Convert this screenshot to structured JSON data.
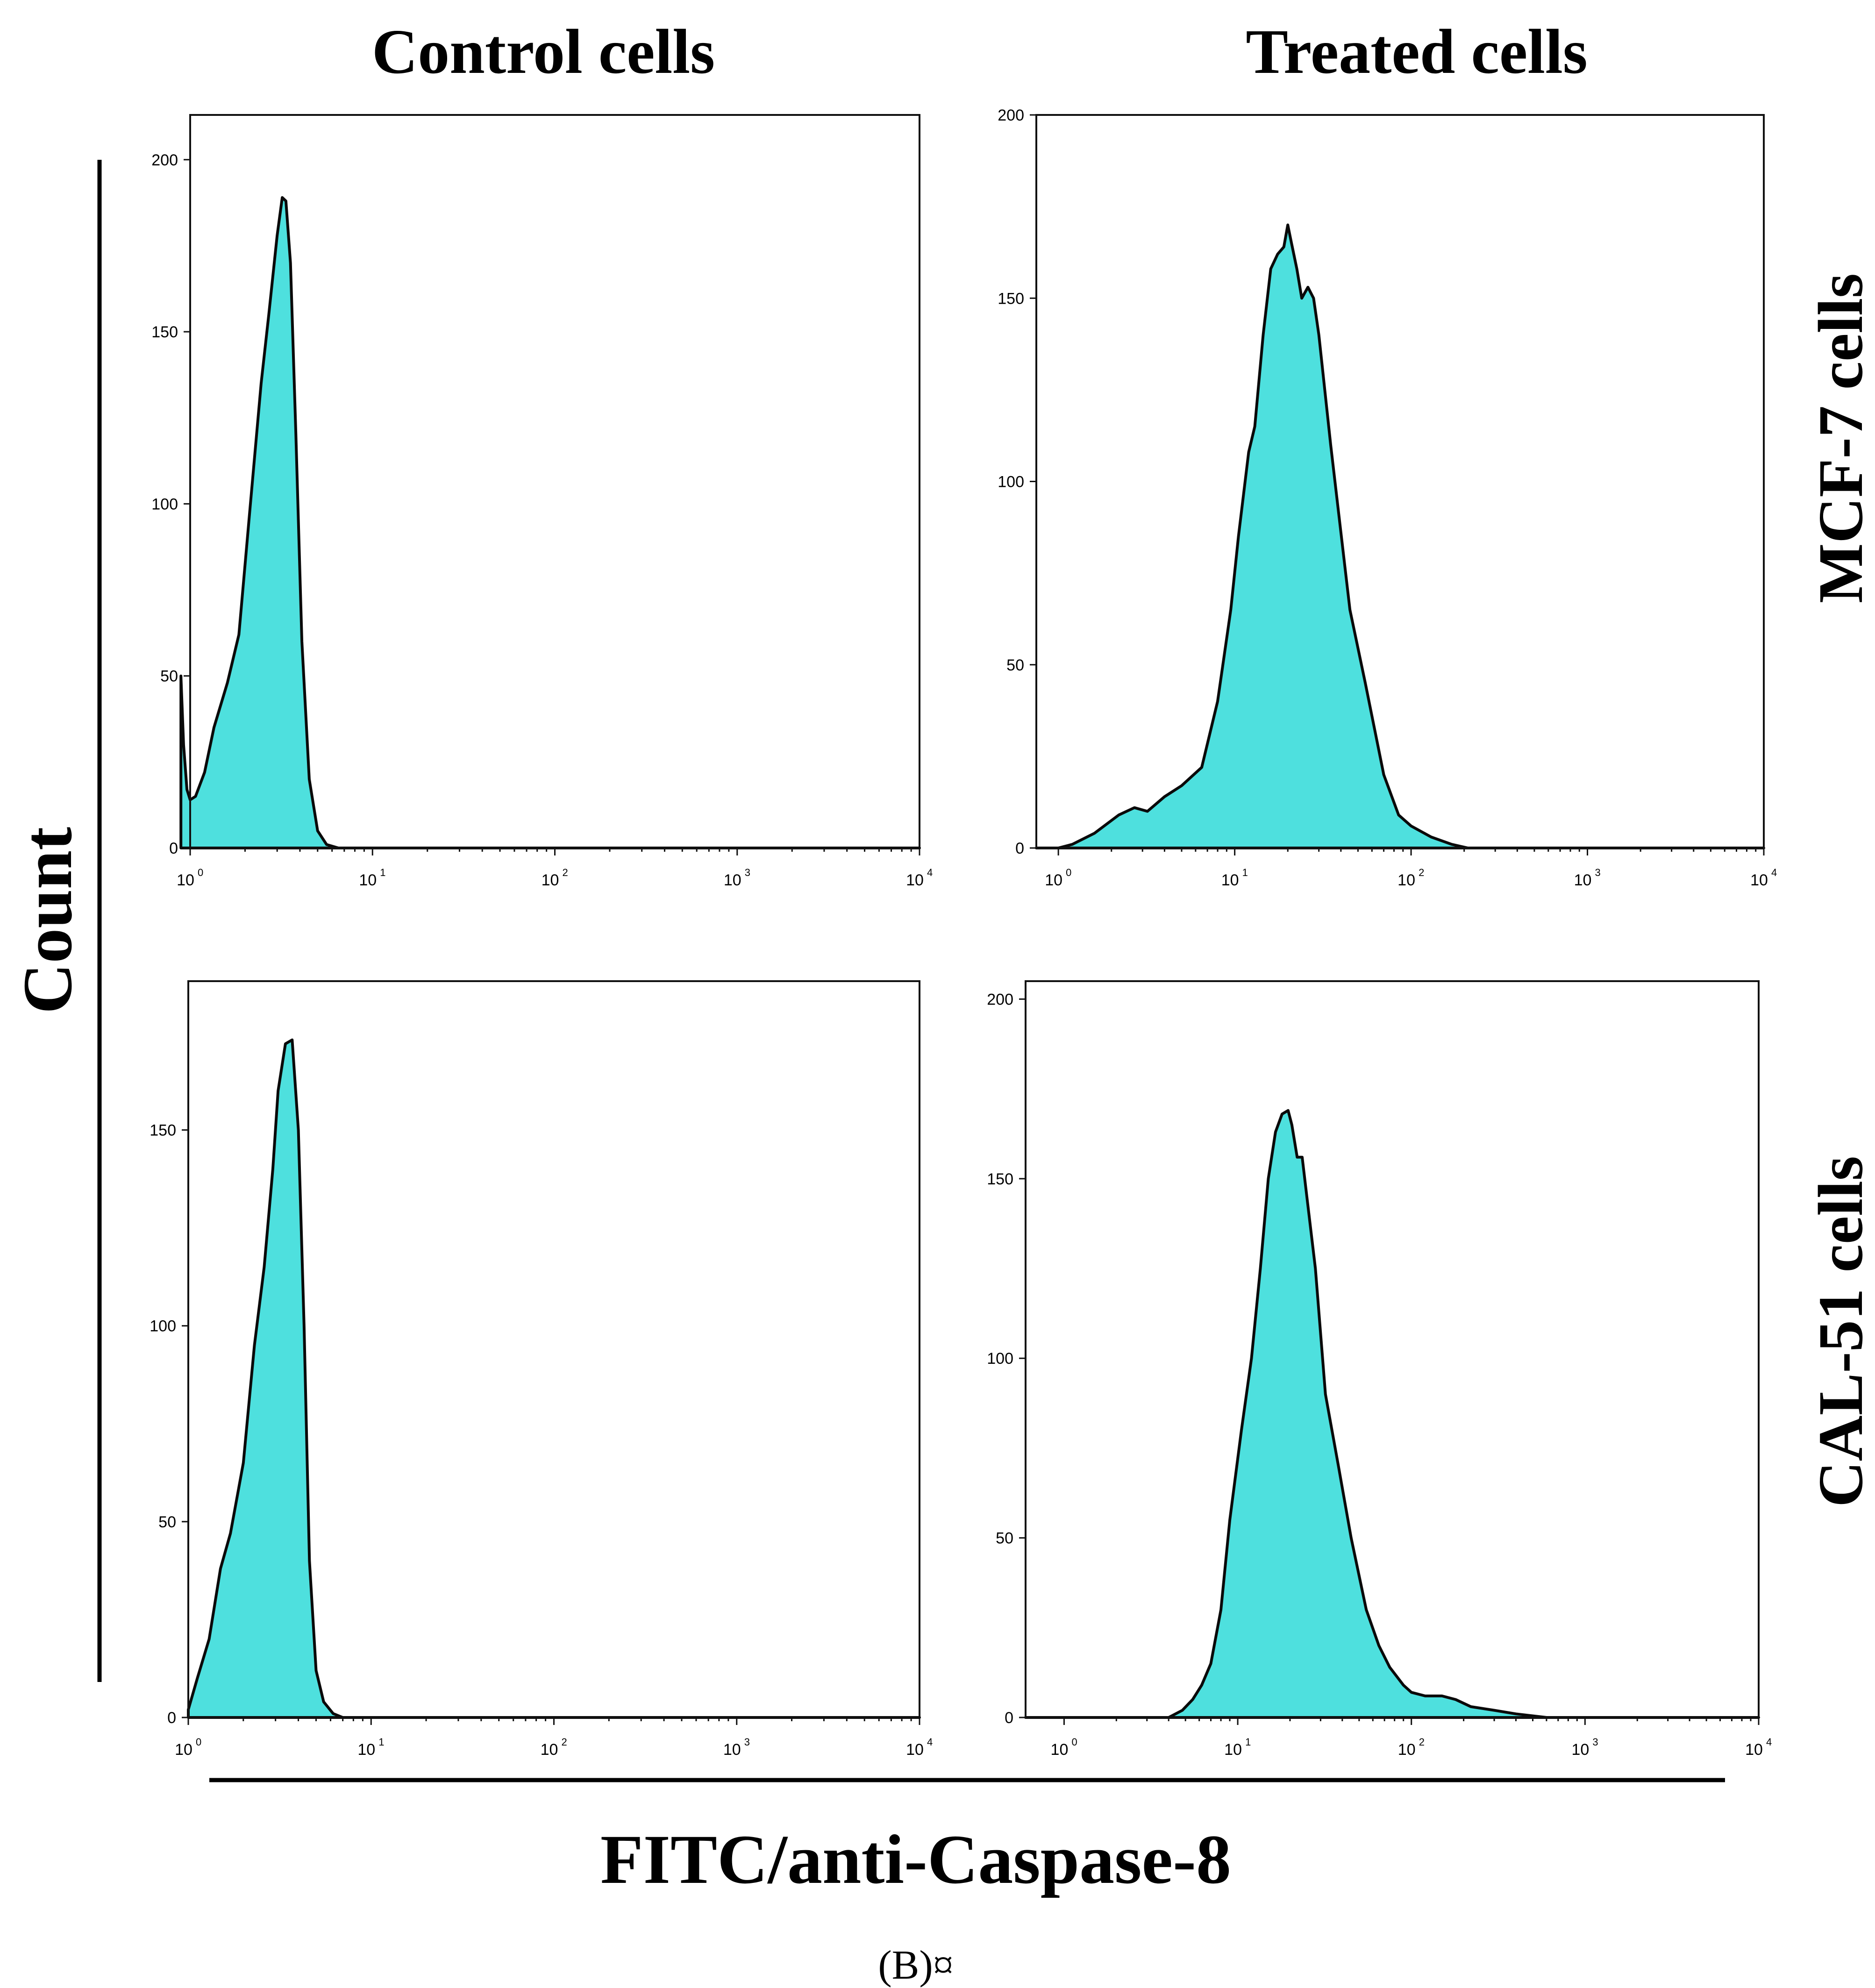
{
  "figure": {
    "columns": [
      "Control cells",
      "Treated cells"
    ],
    "rows": [
      "MCF-7 cells",
      "CAL-51 cells"
    ],
    "ylabel": "Count",
    "xlabel": "FITC/anti-Caspase-8",
    "caption": "(B)¤"
  },
  "chart_data": [
    {
      "type": "area",
      "title": "Control cells / MCF-7 cells",
      "xscale": "log",
      "xlim": [
        1,
        10000
      ],
      "xticks": [
        {
          "base": "10",
          "exp": "0"
        },
        {
          "base": "10",
          "exp": "1"
        },
        {
          "base": "10",
          "exp": "2"
        },
        {
          "base": "10",
          "exp": "3"
        },
        {
          "base": "10",
          "exp": "4"
        }
      ],
      "ylim": [
        0,
        213
      ],
      "yticks": [
        0,
        50,
        100,
        150,
        200
      ],
      "x": [
        0.89,
        0.92,
        0.96,
        1.0,
        1.07,
        1.2,
        1.35,
        1.6,
        1.85,
        2.1,
        2.45,
        2.7,
        3.0,
        3.2,
        3.35,
        3.55,
        3.8,
        4.1,
        4.5,
        5.0,
        5.6,
        6.5,
        8.0,
        20,
        100,
        1000,
        10000
      ],
      "values": [
        50,
        30,
        17,
        14,
        15,
        22,
        35,
        48,
        62,
        95,
        135,
        155,
        178,
        189,
        188,
        170,
        120,
        60,
        20,
        5,
        1,
        0,
        0,
        0,
        0,
        0,
        0
      ]
    },
    {
      "type": "area",
      "title": "Treated cells / MCF-7 cells",
      "xscale": "log",
      "xlim": [
        0.75,
        10000
      ],
      "xticks": [
        {
          "base": "10",
          "exp": "0"
        },
        {
          "base": "10",
          "exp": "1"
        },
        {
          "base": "10",
          "exp": "2"
        },
        {
          "base": "10",
          "exp": "3"
        },
        {
          "base": "10",
          "exp": "4"
        }
      ],
      "ylim": [
        0,
        200
      ],
      "yticks": [
        0,
        50,
        100,
        150,
        200
      ],
      "x": [
        0.75,
        1.0,
        1.2,
        1.6,
        2.2,
        2.7,
        3.2,
        4.0,
        5.0,
        6.5,
        8.0,
        9.5,
        10.5,
        12,
        13,
        14.5,
        16,
        17.5,
        19,
        20,
        21,
        22.5,
        24,
        26,
        28,
        30,
        35,
        45,
        55,
        70,
        85,
        100,
        130,
        170,
        210,
        300,
        1000,
        10000
      ],
      "values": [
        0,
        0,
        1,
        4,
        9,
        11,
        10,
        14,
        17,
        22,
        40,
        65,
        85,
        108,
        115,
        140,
        158,
        162,
        164,
        170,
        165,
        158,
        150,
        153,
        150,
        140,
        110,
        65,
        45,
        20,
        9,
        6,
        3,
        1,
        0,
        0,
        0,
        0
      ]
    },
    {
      "type": "area",
      "title": "Control cells / CAL-51 cells",
      "xscale": "log",
      "xlim": [
        1,
        10000
      ],
      "xticks": [
        {
          "base": "10",
          "exp": "0"
        },
        {
          "base": "10",
          "exp": "1"
        },
        {
          "base": "10",
          "exp": "2"
        },
        {
          "base": "10",
          "exp": "3"
        },
        {
          "base": "10",
          "exp": "4"
        }
      ],
      "ylim": [
        0,
        188
      ],
      "yticks": [
        0,
        50,
        100,
        150
      ],
      "x": [
        1.0,
        1.12,
        1.3,
        1.5,
        1.7,
        2.0,
        2.3,
        2.6,
        2.9,
        3.1,
        3.4,
        3.7,
        4.0,
        4.3,
        4.6,
        5.0,
        5.5,
        6.2,
        7.0,
        8.5,
        20,
        100,
        1000,
        10000
      ],
      "values": [
        2,
        10,
        20,
        38,
        47,
        65,
        95,
        115,
        140,
        160,
        172,
        173,
        150,
        100,
        40,
        12,
        4,
        1,
        0,
        0,
        0,
        0,
        0,
        0
      ]
    },
    {
      "type": "area",
      "title": "Treated cells / CAL-51 cells",
      "xscale": "log",
      "xlim": [
        0.6,
        10000
      ],
      "xticks": [
        {
          "base": "10",
          "exp": "0"
        },
        {
          "base": "10",
          "exp": "1"
        },
        {
          "base": "10",
          "exp": "2"
        },
        {
          "base": "10",
          "exp": "3"
        },
        {
          "base": "10",
          "exp": "4"
        }
      ],
      "ylim": [
        0,
        205
      ],
      "yticks": [
        0,
        50,
        100,
        150,
        200
      ],
      "x": [
        0.6,
        4.0,
        4.8,
        5.5,
        6.2,
        7.0,
        8.0,
        9.0,
        10.5,
        12,
        13.5,
        15,
        16.5,
        18,
        19.5,
        20.5,
        22,
        23.5,
        25,
        28,
        32,
        38,
        45,
        55,
        65,
        75,
        90,
        100,
        120,
        150,
        180,
        220,
        300,
        400,
        600,
        1000,
        10000
      ],
      "values": [
        0,
        0,
        2,
        5,
        9,
        15,
        30,
        55,
        80,
        100,
        125,
        150,
        163,
        168,
        169,
        165,
        156,
        156,
        145,
        125,
        90,
        70,
        50,
        30,
        20,
        14,
        9,
        7,
        6,
        6,
        5,
        3,
        2,
        1,
        0,
        0,
        0
      ]
    }
  ]
}
